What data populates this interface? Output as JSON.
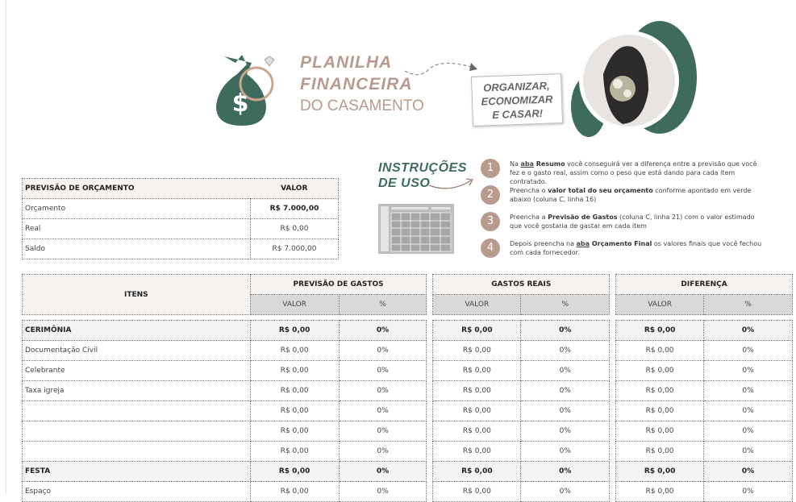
{
  "header": {
    "title_line1": "PLANILHA",
    "title_line2": "FINANCEIRA",
    "title_line3": "DO CASAMENTO",
    "slogan": [
      "ORGANIZAR,",
      "ECONOMIZAR",
      "E CASAR!"
    ],
    "brand_color": "#3f6b5c",
    "accent_color": "#b99a8e"
  },
  "instructions": {
    "title_line1": "INSTRUÇÕES",
    "title_line2": "DE USO",
    "steps": [
      {
        "num": "1",
        "parts": [
          [
            "",
            "Na "
          ],
          [
            "u",
            "aba"
          ],
          [
            "b",
            " Resumo"
          ],
          [
            "",
            " você conseguirá ver a diferença entre a previsão que você fez e o gasto real, assim como o peso que está dando para cada item contratado."
          ]
        ]
      },
      {
        "num": "2",
        "parts": [
          [
            "",
            "Preencha o "
          ],
          [
            "b",
            "valor total do seu orçamento"
          ],
          [
            "",
            " conforme apontado em verde abaixo (coluna C, linha 16)"
          ]
        ]
      },
      {
        "num": "3",
        "parts": [
          [
            "",
            "Preencha a "
          ],
          [
            "b",
            "Previsão de Gastos"
          ],
          [
            "",
            " (coluna C, linha 21) com o valor estimado que você gostaria de gastar em cada item"
          ]
        ]
      },
      {
        "num": "4",
        "parts": [
          [
            "",
            "Depois preencha na "
          ],
          [
            "u",
            "aba"
          ],
          [
            "b",
            " Orçamento Final"
          ],
          [
            "",
            " os valores finais que você fechou com cada fornecedor."
          ]
        ]
      }
    ]
  },
  "budget": {
    "header_label": "PREVISÃO DE ORÇAMENTO",
    "header_value": "VALOR",
    "rows": [
      {
        "label": "Orçamento",
        "value": "R$ 7.000,00",
        "bold": true
      },
      {
        "label": "Real",
        "value": "R$ 0,00"
      },
      {
        "label": "Saldo",
        "value": "R$ 7.000,00"
      }
    ]
  },
  "main": {
    "items_header": "ITENS",
    "groups": [
      "PREVISÃO DE GASTOS",
      "GASTOS REAIS",
      "DIFERENÇA"
    ],
    "sub_value": "VALOR",
    "sub_pct": "%",
    "rows": [
      {
        "item": "CERIMÔNIA",
        "cat": true,
        "vals": [
          "R$ 0,00",
          "0%",
          "R$ 0,00",
          "0%",
          "R$ 0,00",
          "0%"
        ]
      },
      {
        "item": "Documentação Civil",
        "vals": [
          "R$ 0,00",
          "0%",
          "R$ 0,00",
          "0%",
          "R$ 0,00",
          "0%"
        ]
      },
      {
        "item": "Celebrante",
        "vals": [
          "R$ 0,00",
          "0%",
          "R$ 0,00",
          "0%",
          "R$ 0,00",
          "0%"
        ]
      },
      {
        "item": "Taxa igreja",
        "vals": [
          "R$ 0,00",
          "0%",
          "R$ 0,00",
          "0%",
          "R$ 0,00",
          "0%"
        ]
      },
      {
        "item": "",
        "vals": [
          "R$ 0,00",
          "0%",
          "R$ 0,00",
          "0%",
          "R$ 0,00",
          "0%"
        ]
      },
      {
        "item": "",
        "vals": [
          "R$ 0,00",
          "0%",
          "R$ 0,00",
          "0%",
          "R$ 0,00",
          "0%"
        ]
      },
      {
        "item": "",
        "vals": [
          "R$ 0,00",
          "0%",
          "R$ 0,00",
          "0%",
          "R$ 0,00",
          "0%"
        ]
      },
      {
        "item": "FESTA",
        "cat": true,
        "vals": [
          "R$ 0,00",
          "0%",
          "R$ 0,00",
          "0%",
          "R$ 0,00",
          "0%"
        ]
      },
      {
        "item": "Espaço",
        "vals": [
          "R$ 0,00",
          "0%",
          "R$ 0,00",
          "0%",
          "R$ 0,00",
          "0%"
        ]
      }
    ]
  }
}
